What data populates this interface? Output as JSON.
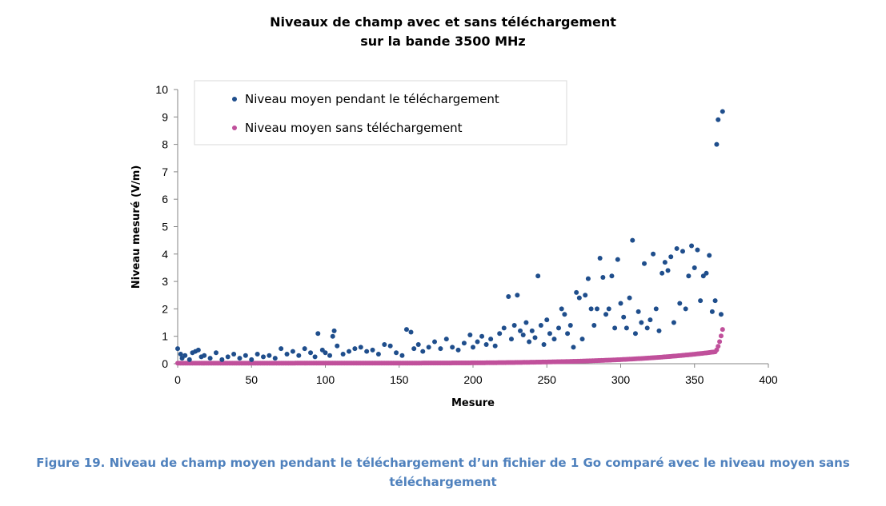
{
  "chart_data": {
    "type": "scatter",
    "title_lines": [
      "Niveaux de champ avec et sans téléchargement",
      "sur la bande 3500 MHz"
    ],
    "xlabel": "Mesure",
    "ylabel": "Niveau mesuré (V/m)",
    "xlim": [
      0,
      400
    ],
    "ylim": [
      0,
      10
    ],
    "xticks": [
      0,
      50,
      100,
      150,
      200,
      250,
      300,
      350,
      400
    ],
    "yticks": [
      0,
      1,
      2,
      3,
      4,
      5,
      6,
      7,
      8,
      9,
      10
    ],
    "grid": false,
    "legend_position": "top-left",
    "series": [
      {
        "name": "Niveau moyen pendant le téléchargement",
        "color": "#1f4e8c",
        "points": [
          [
            0,
            0.55
          ],
          [
            2,
            0.35
          ],
          [
            3,
            0.2
          ],
          [
            5,
            0.3
          ],
          [
            8,
            0.15
          ],
          [
            10,
            0.4
          ],
          [
            12,
            0.45
          ],
          [
            14,
            0.5
          ],
          [
            16,
            0.25
          ],
          [
            18,
            0.3
          ],
          [
            22,
            0.2
          ],
          [
            26,
            0.4
          ],
          [
            30,
            0.15
          ],
          [
            34,
            0.25
          ],
          [
            38,
            0.35
          ],
          [
            42,
            0.2
          ],
          [
            46,
            0.3
          ],
          [
            50,
            0.15
          ],
          [
            54,
            0.35
          ],
          [
            58,
            0.25
          ],
          [
            62,
            0.3
          ],
          [
            66,
            0.2
          ],
          [
            70,
            0.55
          ],
          [
            74,
            0.35
          ],
          [
            78,
            0.45
          ],
          [
            82,
            0.3
          ],
          [
            86,
            0.55
          ],
          [
            90,
            0.4
          ],
          [
            93,
            0.25
          ],
          [
            95,
            1.1
          ],
          [
            98,
            0.5
          ],
          [
            100,
            0.4
          ],
          [
            103,
            0.3
          ],
          [
            105,
            1.0
          ],
          [
            106,
            1.2
          ],
          [
            108,
            0.65
          ],
          [
            112,
            0.35
          ],
          [
            116,
            0.45
          ],
          [
            120,
            0.55
          ],
          [
            124,
            0.6
          ],
          [
            128,
            0.45
          ],
          [
            132,
            0.5
          ],
          [
            136,
            0.35
          ],
          [
            140,
            0.7
          ],
          [
            144,
            0.65
          ],
          [
            148,
            0.4
          ],
          [
            152,
            0.3
          ],
          [
            155,
            1.25
          ],
          [
            158,
            1.15
          ],
          [
            160,
            0.55
          ],
          [
            163,
            0.7
          ],
          [
            166,
            0.45
          ],
          [
            170,
            0.6
          ],
          [
            174,
            0.8
          ],
          [
            178,
            0.55
          ],
          [
            182,
            0.9
          ],
          [
            186,
            0.6
          ],
          [
            190,
            0.5
          ],
          [
            194,
            0.75
          ],
          [
            198,
            1.05
          ],
          [
            200,
            0.6
          ],
          [
            203,
            0.8
          ],
          [
            206,
            1.0
          ],
          [
            209,
            0.7
          ],
          [
            212,
            0.9
          ],
          [
            215,
            0.65
          ],
          [
            218,
            1.1
          ],
          [
            221,
            1.3
          ],
          [
            224,
            2.45
          ],
          [
            226,
            0.9
          ],
          [
            228,
            1.4
          ],
          [
            230,
            2.5
          ],
          [
            232,
            1.2
          ],
          [
            234,
            1.05
          ],
          [
            236,
            1.5
          ],
          [
            238,
            0.8
          ],
          [
            240,
            1.2
          ],
          [
            242,
            0.95
          ],
          [
            244,
            3.2
          ],
          [
            246,
            1.4
          ],
          [
            248,
            0.7
          ],
          [
            250,
            1.6
          ],
          [
            252,
            1.1
          ],
          [
            255,
            0.9
          ],
          [
            258,
            1.3
          ],
          [
            260,
            2.0
          ],
          [
            262,
            1.8
          ],
          [
            264,
            1.1
          ],
          [
            266,
            1.4
          ],
          [
            268,
            0.6
          ],
          [
            270,
            2.6
          ],
          [
            272,
            2.4
          ],
          [
            274,
            0.9
          ],
          [
            276,
            2.5
          ],
          [
            278,
            3.1
          ],
          [
            280,
            2.0
          ],
          [
            282,
            1.4
          ],
          [
            284,
            2.0
          ],
          [
            286,
            3.85
          ],
          [
            288,
            3.15
          ],
          [
            290,
            1.8
          ],
          [
            292,
            2.0
          ],
          [
            294,
            3.2
          ],
          [
            296,
            1.3
          ],
          [
            298,
            3.8
          ],
          [
            300,
            2.2
          ],
          [
            302,
            1.7
          ],
          [
            304,
            1.3
          ],
          [
            306,
            2.4
          ],
          [
            308,
            4.5
          ],
          [
            310,
            1.1
          ],
          [
            312,
            1.9
          ],
          [
            314,
            1.5
          ],
          [
            316,
            3.65
          ],
          [
            318,
            1.3
          ],
          [
            320,
            1.6
          ],
          [
            322,
            4.0
          ],
          [
            324,
            2.0
          ],
          [
            326,
            1.2
          ],
          [
            328,
            3.3
          ],
          [
            330,
            3.7
          ],
          [
            332,
            3.4
          ],
          [
            334,
            3.9
          ],
          [
            336,
            1.5
          ],
          [
            338,
            4.2
          ],
          [
            340,
            2.2
          ],
          [
            342,
            4.1
          ],
          [
            344,
            2.0
          ],
          [
            346,
            3.2
          ],
          [
            348,
            4.3
          ],
          [
            350,
            3.5
          ],
          [
            352,
            4.15
          ],
          [
            354,
            2.3
          ],
          [
            356,
            3.2
          ],
          [
            358,
            3.3
          ],
          [
            360,
            3.95
          ],
          [
            362,
            1.9
          ],
          [
            364,
            2.3
          ],
          [
            365,
            8.0
          ],
          [
            366,
            8.9
          ],
          [
            368,
            1.8
          ],
          [
            369,
            9.2
          ]
        ]
      },
      {
        "name": "Niveau moyen sans téléchargement",
        "color": "#c0509b",
        "curve": {
          "count": 370,
          "base": 0.02,
          "rise": 0.45,
          "final": 1.25
        }
      }
    ]
  },
  "caption": "Figure 19. Niveau de champ moyen pendant le téléchargement d’un fichier de 1 Go comparé avec le niveau moyen sans téléchargement"
}
